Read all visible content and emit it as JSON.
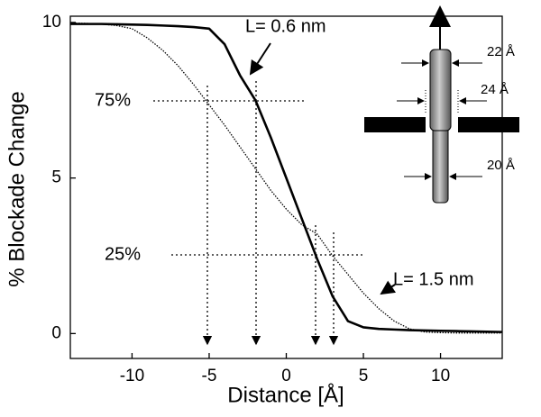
{
  "chart_data": {
    "type": "line",
    "x_label": "Distance [Å]",
    "y_label": "% Blockade Change",
    "x": [
      -14,
      -13,
      -12,
      -11,
      -10,
      -9,
      -8,
      -7,
      -6,
      -5,
      -4,
      -3,
      -2,
      -1,
      0,
      1,
      2,
      3,
      4,
      5,
      6,
      7,
      8,
      9,
      10,
      11,
      12,
      13,
      14
    ],
    "series": [
      {
        "name": "L= 0.6 nm",
        "color": "#000000",
        "line_style": "solid",
        "values": [
          9.95,
          9.95,
          9.95,
          9.94,
          9.93,
          9.92,
          9.9,
          9.88,
          9.85,
          9.8,
          9.3,
          8.3,
          7.5,
          6.3,
          5.0,
          3.7,
          2.4,
          1.2,
          0.4,
          0.2,
          0.15,
          0.13,
          0.11,
          0.1,
          0.09,
          0.08,
          0.07,
          0.06,
          0.05
        ]
      },
      {
        "name": "L= 1.5 nm",
        "color": "#000000",
        "line_style": "dotted",
        "values": [
          9.98,
          9.97,
          9.95,
          9.9,
          9.8,
          9.5,
          9.1,
          8.6,
          8.0,
          7.35,
          6.7,
          6.0,
          5.3,
          4.6,
          4.0,
          3.5,
          3.2,
          2.5,
          1.9,
          1.3,
          0.8,
          0.4,
          0.15,
          0.05,
          0.03,
          0.02,
          0.02,
          0.02,
          0.02
        ]
      }
    ],
    "annotations": [
      "75%",
      "25%"
    ],
    "inset_labels": [
      "22 Å",
      "24 Å",
      "20 Å"
    ],
    "xlim": [
      -14,
      14
    ],
    "ylim": [
      -0.8,
      10.2
    ],
    "xticks": [
      -10,
      -5,
      0,
      5,
      10
    ],
    "yticks": [
      0,
      5,
      10
    ],
    "grid": false
  }
}
